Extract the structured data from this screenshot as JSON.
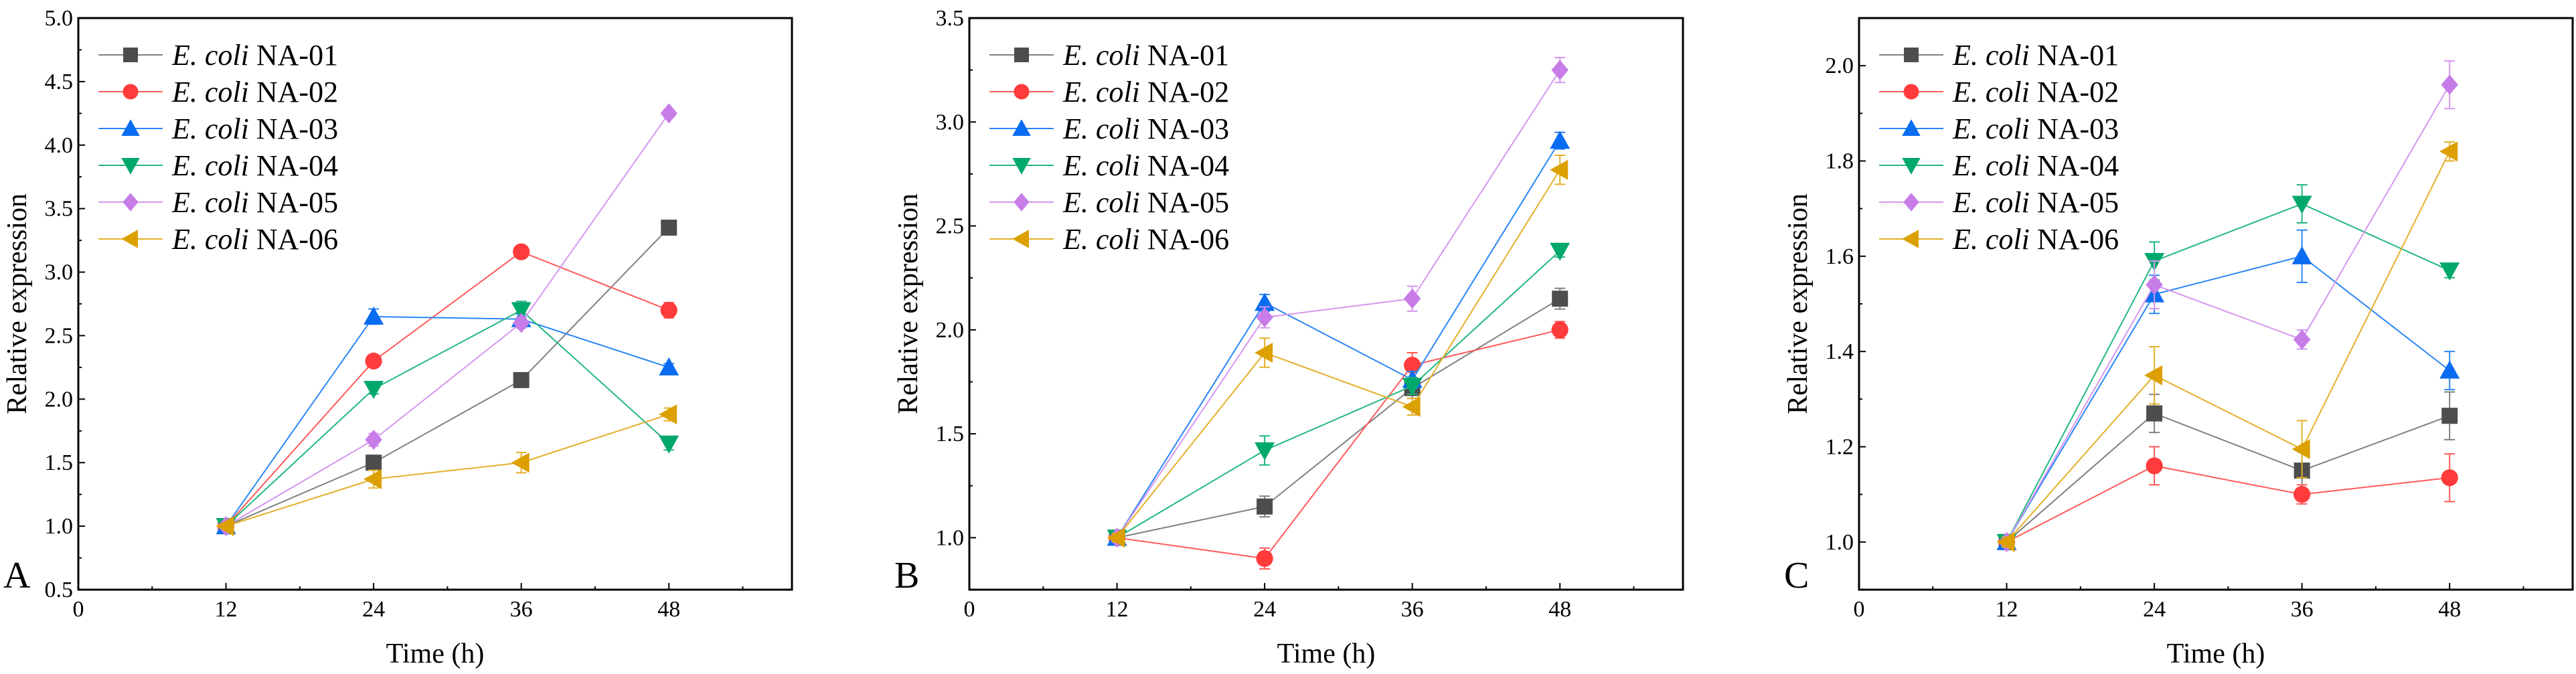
{
  "chart_data": [
    {
      "type": "line",
      "panel_label": "A",
      "xlabel": "Time (h)",
      "ylabel": "Relative expression",
      "xlim": [
        0,
        58
      ],
      "ylim": [
        0.5,
        5.0
      ],
      "xticks": [
        0,
        12,
        24,
        36,
        48
      ],
      "yticks": [
        0.5,
        1.0,
        1.5,
        2.0,
        2.5,
        3.0,
        3.5,
        4.0,
        4.5,
        5.0
      ],
      "ytick_labels": [
        "0.5",
        "1.0",
        "1.5",
        "2.0",
        "2.5",
        "3.0",
        "3.5",
        "4.0",
        "4.5",
        "5.0"
      ],
      "legend_position": "top-left",
      "x": [
        12,
        24,
        36,
        48
      ],
      "series": [
        {
          "name_italic": "E. coli",
          "name": "NA-01",
          "color": "#4d4d4d",
          "line_color": "#808080",
          "marker": "square",
          "values": [
            1.0,
            1.5,
            2.15,
            3.35
          ],
          "errors": [
            0.02,
            0.04,
            0.04,
            0.05
          ]
        },
        {
          "name_italic": "E. coli",
          "name": "NA-02",
          "color": "#ff3b3b",
          "line_color": "#ff5a5a",
          "marker": "circle",
          "values": [
            1.0,
            2.3,
            3.16,
            2.7
          ],
          "errors": [
            0.02,
            0.04,
            0.03,
            0.06
          ]
        },
        {
          "name_italic": "E. coli",
          "name": "NA-03",
          "color": "#0a6cf0",
          "line_color": "#2a86f5",
          "marker": "triangle-up",
          "values": [
            1.0,
            2.65,
            2.63,
            2.25
          ],
          "errors": [
            0.02,
            0.06,
            0.04,
            0.03
          ]
        },
        {
          "name_italic": "E. coli",
          "name": "NA-04",
          "color": "#00a86b",
          "line_color": "#22b87f",
          "marker": "triangle-down",
          "values": [
            1.0,
            2.08,
            2.7,
            1.65
          ],
          "errors": [
            0.02,
            0.04,
            0.07,
            0.05
          ]
        },
        {
          "name_italic": "E. coli",
          "name": "NA-05",
          "color": "#c77ce8",
          "line_color": "#d597ef",
          "marker": "diamond",
          "values": [
            1.0,
            1.68,
            2.6,
            4.25
          ],
          "errors": [
            0.02,
            0.05,
            0.04,
            0.03
          ]
        },
        {
          "name_italic": "E. coli",
          "name": "NA-06",
          "color": "#dca000",
          "line_color": "#e3b02a",
          "marker": "triangle-left",
          "values": [
            1.0,
            1.37,
            1.5,
            1.88
          ],
          "errors": [
            0.02,
            0.07,
            0.08,
            0.05
          ]
        }
      ]
    },
    {
      "type": "line",
      "panel_label": "B",
      "xlabel": "Time (h)",
      "ylabel": "Relative expression",
      "xlim": [
        0,
        58
      ],
      "ylim": [
        0.75,
        3.5
      ],
      "xticks": [
        0,
        12,
        24,
        36,
        48
      ],
      "yticks": [
        1.0,
        1.5,
        2.0,
        2.5,
        3.0,
        3.5
      ],
      "ytick_labels": [
        "1.0",
        "1.5",
        "2.0",
        "2.5",
        "3.0",
        "3.5"
      ],
      "legend_position": "top-left",
      "x": [
        12,
        24,
        36,
        48
      ],
      "series": [
        {
          "name_italic": "E. coli",
          "name": "NA-01",
          "color": "#4d4d4d",
          "line_color": "#808080",
          "marker": "square",
          "values": [
            1.0,
            1.15,
            1.72,
            2.15
          ],
          "errors": [
            0.02,
            0.05,
            0.05,
            0.05
          ]
        },
        {
          "name_italic": "E. coli",
          "name": "NA-02",
          "color": "#ff3b3b",
          "line_color": "#ff5a5a",
          "marker": "circle",
          "values": [
            1.0,
            0.9,
            1.83,
            2.0
          ],
          "errors": [
            0.02,
            0.05,
            0.06,
            0.04
          ]
        },
        {
          "name_italic": "E. coli",
          "name": "NA-03",
          "color": "#0a6cf0",
          "line_color": "#2a86f5",
          "marker": "triangle-up",
          "values": [
            1.0,
            2.13,
            1.76,
            2.91
          ],
          "errors": [
            0.02,
            0.04,
            0.04,
            0.04
          ]
        },
        {
          "name_italic": "E. coli",
          "name": "NA-04",
          "color": "#00a86b",
          "line_color": "#22b87f",
          "marker": "triangle-down",
          "values": [
            1.0,
            1.42,
            1.73,
            2.38
          ],
          "errors": [
            0.02,
            0.07,
            0.04,
            0.03
          ]
        },
        {
          "name_italic": "E. coli",
          "name": "NA-05",
          "color": "#c77ce8",
          "line_color": "#d597ef",
          "marker": "diamond",
          "values": [
            1.0,
            2.06,
            2.15,
            3.25
          ],
          "errors": [
            0.02,
            0.05,
            0.06,
            0.06
          ]
        },
        {
          "name_italic": "E. coli",
          "name": "NA-06",
          "color": "#dca000",
          "line_color": "#e3b02a",
          "marker": "triangle-left",
          "values": [
            1.0,
            1.89,
            1.63,
            2.77
          ],
          "errors": [
            0.02,
            0.07,
            0.04,
            0.07
          ]
        }
      ]
    },
    {
      "type": "line",
      "panel_label": "C",
      "xlabel": "Time (h)",
      "ylabel": "Relative expression",
      "xlim": [
        0,
        58
      ],
      "ylim": [
        0.9,
        2.1
      ],
      "xticks": [
        0,
        12,
        24,
        36,
        48
      ],
      "yticks": [
        1.0,
        1.2,
        1.4,
        1.6,
        1.8,
        2.0
      ],
      "ytick_labels": [
        "1.0",
        "1.2",
        "1.4",
        "1.6",
        "1.8",
        "2.0"
      ],
      "legend_position": "top-left",
      "x": [
        12,
        24,
        36,
        48
      ],
      "series": [
        {
          "name_italic": "E. coli",
          "name": "NA-01",
          "color": "#4d4d4d",
          "line_color": "#808080",
          "marker": "square",
          "values": [
            1.0,
            1.27,
            1.15,
            1.265
          ],
          "errors": [
            0.01,
            0.04,
            0.04,
            0.05
          ]
        },
        {
          "name_italic": "E. coli",
          "name": "NA-02",
          "color": "#ff3b3b",
          "line_color": "#ff5a5a",
          "marker": "circle",
          "values": [
            1.0,
            1.16,
            1.1,
            1.135
          ],
          "errors": [
            0.01,
            0.04,
            0.02,
            0.05
          ]
        },
        {
          "name_italic": "E. coli",
          "name": "NA-03",
          "color": "#0a6cf0",
          "line_color": "#2a86f5",
          "marker": "triangle-up",
          "values": [
            1.0,
            1.52,
            1.6,
            1.36
          ],
          "errors": [
            0.01,
            0.04,
            0.055,
            0.04
          ]
        },
        {
          "name_italic": "E. coli",
          "name": "NA-04",
          "color": "#00a86b",
          "line_color": "#22b87f",
          "marker": "triangle-down",
          "values": [
            1.0,
            1.59,
            1.71,
            1.57
          ],
          "errors": [
            0.01,
            0.04,
            0.04,
            0.015
          ]
        },
        {
          "name_italic": "E. coli",
          "name": "NA-05",
          "color": "#c77ce8",
          "line_color": "#d597ef",
          "marker": "diamond",
          "values": [
            1.0,
            1.54,
            1.425,
            1.96
          ],
          "errors": [
            0.01,
            0.05,
            0.02,
            0.05
          ]
        },
        {
          "name_italic": "E. coli",
          "name": "NA-06",
          "color": "#dca000",
          "line_color": "#e3b02a",
          "marker": "triangle-left",
          "values": [
            1.0,
            1.35,
            1.195,
            1.82
          ],
          "errors": [
            0.01,
            0.06,
            0.06,
            0.02
          ]
        }
      ]
    }
  ]
}
